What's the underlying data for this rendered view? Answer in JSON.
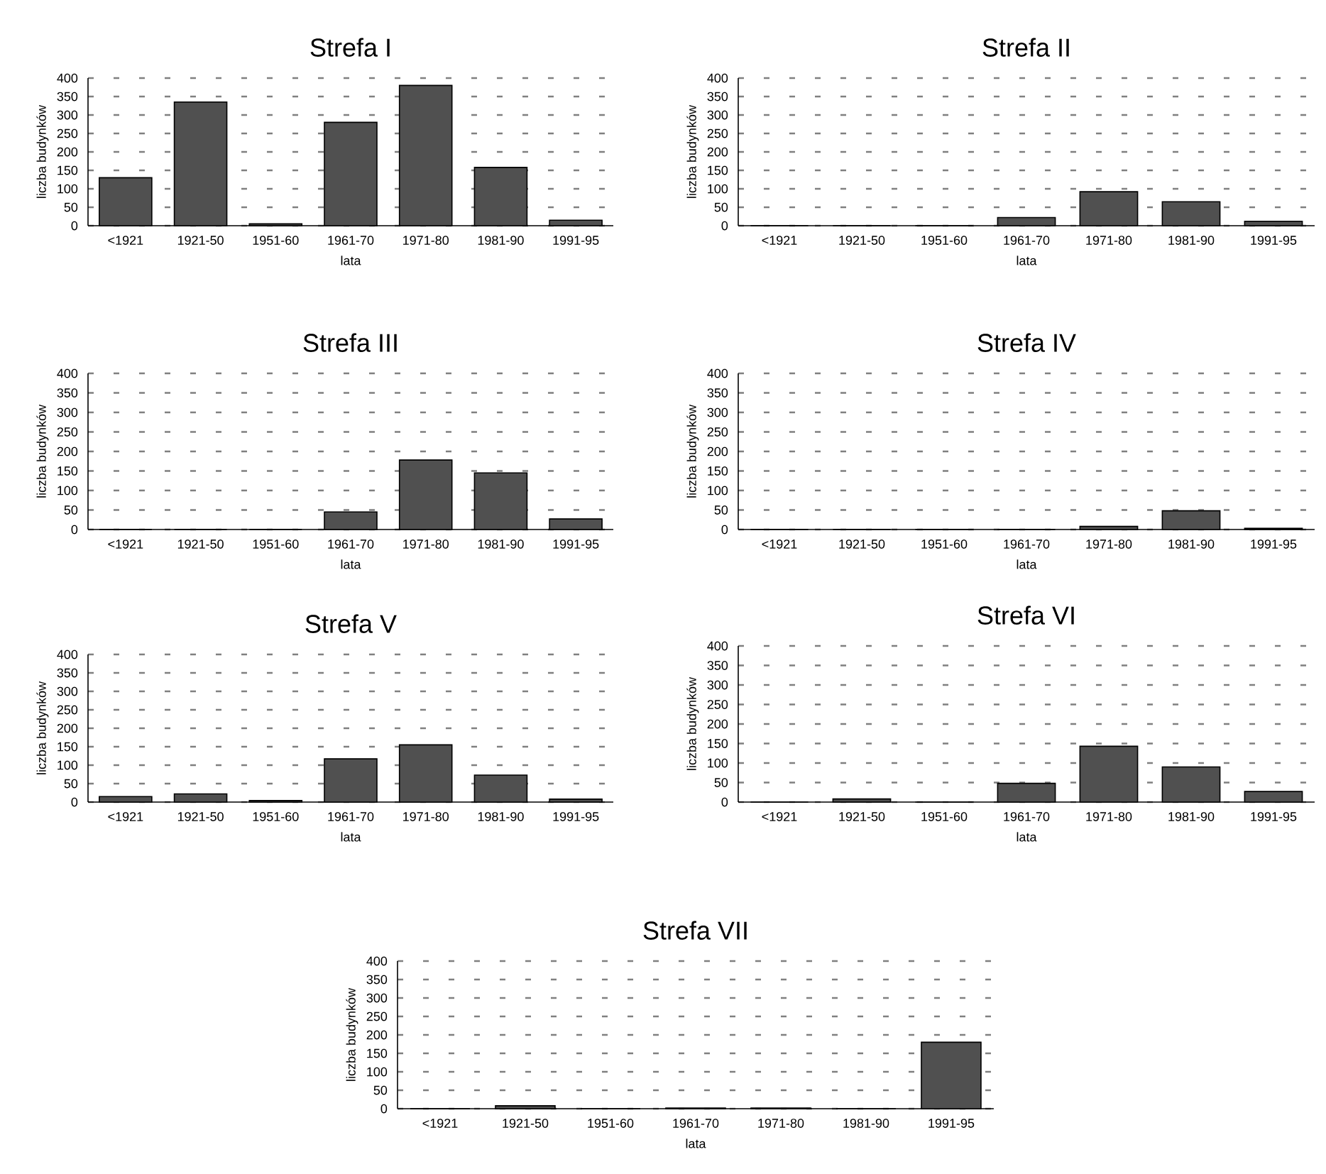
{
  "chart_data": [
    {
      "type": "bar",
      "title": "Strefa I",
      "xlabel": "lata",
      "ylabel": "liczba budynków",
      "categories": [
        "<1921",
        "1921-50",
        "1951-60",
        "1961-70",
        "1971-80",
        "1981-90",
        "1991-95"
      ],
      "values": [
        130,
        335,
        5,
        280,
        380,
        158,
        15
      ],
      "color": "#505050",
      "ylim": [
        0,
        400
      ],
      "yticks": [
        0,
        50,
        100,
        150,
        200,
        250,
        300,
        350,
        400
      ],
      "grid": "y"
    },
    {
      "type": "bar",
      "title": "Strefa II",
      "xlabel": "lata",
      "ylabel": "liczba budynków",
      "categories": [
        "<1921",
        "1921-50",
        "1951-60",
        "1961-70",
        "1971-80",
        "1981-90",
        "1991-95"
      ],
      "values": [
        0,
        0,
        0,
        22,
        92,
        65,
        12
      ],
      "color": "#505050",
      "ylim": [
        0,
        400
      ],
      "yticks": [
        0,
        50,
        100,
        150,
        200,
        250,
        300,
        350,
        400
      ],
      "grid": "y"
    },
    {
      "type": "bar",
      "title": "Strefa III",
      "xlabel": "lata",
      "ylabel": "liczba budynków",
      "categories": [
        "<1921",
        "1921-50",
        "1951-60",
        "1961-70",
        "1971-80",
        "1981-90",
        "1991-95"
      ],
      "values": [
        0,
        0,
        0,
        45,
        178,
        145,
        27
      ],
      "color": "#505050",
      "ylim": [
        0,
        400
      ],
      "yticks": [
        0,
        50,
        100,
        150,
        200,
        250,
        300,
        350,
        400
      ],
      "grid": "y"
    },
    {
      "type": "bar",
      "title": "Strefa IV",
      "xlabel": "lata",
      "ylabel": "liczba budynków",
      "categories": [
        "<1921",
        "1921-50",
        "1951-60",
        "1961-70",
        "1971-80",
        "1981-90",
        "1991-95"
      ],
      "values": [
        0,
        0,
        0,
        0,
        8,
        48,
        3
      ],
      "color": "#505050",
      "ylim": [
        0,
        400
      ],
      "yticks": [
        0,
        50,
        100,
        150,
        200,
        250,
        300,
        350,
        400
      ],
      "grid": "y"
    },
    {
      "type": "bar",
      "title": "Strefa V",
      "xlabel": "lata",
      "ylabel": "liczba budynków",
      "categories": [
        "<1921",
        "1921-50",
        "1951-60",
        "1961-70",
        "1971-80",
        "1981-90",
        "1991-95"
      ],
      "values": [
        15,
        22,
        4,
        117,
        155,
        73,
        8
      ],
      "color": "#505050",
      "ylim": [
        0,
        400
      ],
      "yticks": [
        0,
        50,
        100,
        150,
        200,
        250,
        300,
        350,
        400
      ],
      "grid": "y"
    },
    {
      "type": "bar",
      "title": "Strefa VI",
      "xlabel": "lata",
      "ylabel": "liczba budynków",
      "categories": [
        "<1921",
        "1921-50",
        "1951-60",
        "1961-70",
        "1971-80",
        "1981-90",
        "1991-95"
      ],
      "values": [
        0,
        8,
        0,
        48,
        143,
        90,
        27
      ],
      "color": "#505050",
      "ylim": [
        0,
        400
      ],
      "yticks": [
        0,
        50,
        100,
        150,
        200,
        250,
        300,
        350,
        400
      ],
      "grid": "y"
    },
    {
      "type": "bar",
      "title": "Strefa VII",
      "xlabel": "lata",
      "ylabel": "liczba budynków",
      "categories": [
        "<1921",
        "1921-50",
        "1951-60",
        "1961-70",
        "1971-80",
        "1981-90",
        "1991-95"
      ],
      "values": [
        0,
        8,
        0,
        2,
        2,
        0,
        180
      ],
      "color": "#505050",
      "ylim": [
        0,
        400
      ],
      "yticks": [
        0,
        50,
        100,
        150,
        200,
        250,
        300,
        350,
        400
      ],
      "grid": "y"
    }
  ]
}
